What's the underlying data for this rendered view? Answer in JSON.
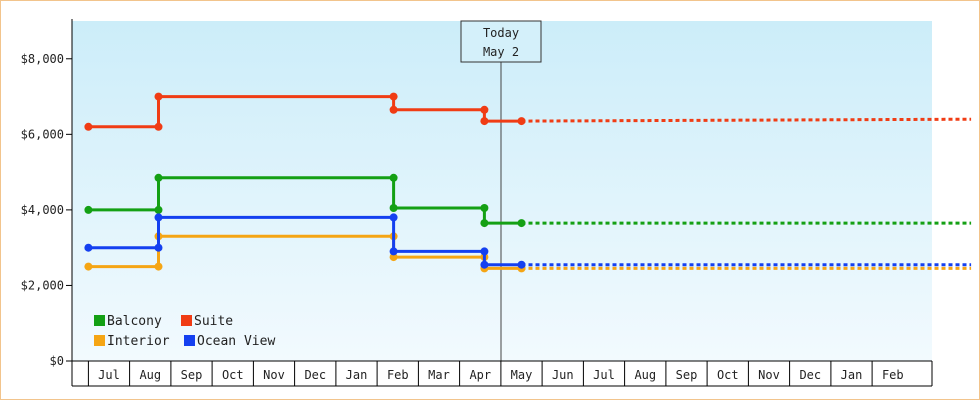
{
  "chart_data": {
    "type": "line",
    "step": true,
    "today_marker": {
      "line1": "Today",
      "line2": "May 2",
      "x": "May 2"
    },
    "y_axis": {
      "min": 0,
      "max": 9000,
      "ticks": [
        {
          "value": 0,
          "label": "$0"
        },
        {
          "value": 2000,
          "label": "$2,000"
        },
        {
          "value": 4000,
          "label": "$4,000"
        },
        {
          "value": 6000,
          "label": "$6,000"
        },
        {
          "value": 8000,
          "label": "$8,000"
        }
      ]
    },
    "x_axis": {
      "months": [
        "Jul",
        "Aug",
        "Sep",
        "Oct",
        "Nov",
        "Dec",
        "Jan",
        "Feb",
        "Mar",
        "Apr",
        "May",
        "Jun",
        "Jul",
        "Aug",
        "Sep",
        "Oct",
        "Nov",
        "Dec",
        "Jan",
        "Feb"
      ]
    },
    "legend_position": "bottom-left",
    "grid": false,
    "background": {
      "top": "#ccedf9",
      "bottom": "#f2fafe"
    },
    "series": [
      {
        "name": "Balcony",
        "color": "#14a014",
        "points": [
          [
            -0.5,
            4000
          ],
          [
            1.2,
            4000
          ],
          [
            1.2,
            4850
          ],
          [
            6.9,
            4850
          ],
          [
            6.9,
            4050
          ],
          [
            9.1,
            4050
          ],
          [
            9.1,
            3650
          ],
          [
            10.0,
            3650
          ]
        ],
        "forecast": [
          [
            10.0,
            3650
          ],
          [
            20.9,
            3650
          ]
        ]
      },
      {
        "name": "Suite",
        "color": "#f03c14",
        "points": [
          [
            -0.5,
            6200
          ],
          [
            1.2,
            6200
          ],
          [
            1.2,
            7000
          ],
          [
            6.9,
            7000
          ],
          [
            6.9,
            6650
          ],
          [
            9.1,
            6650
          ],
          [
            9.1,
            6350
          ],
          [
            10.0,
            6350
          ]
        ],
        "forecast": [
          [
            10.0,
            6350
          ],
          [
            20.9,
            6400
          ]
        ]
      },
      {
        "name": "Interior",
        "color": "#f5a514",
        "points": [
          [
            -0.5,
            2500
          ],
          [
            1.2,
            2500
          ],
          [
            1.2,
            3300
          ],
          [
            6.9,
            3300
          ],
          [
            6.9,
            2750
          ],
          [
            9.1,
            2750
          ],
          [
            9.1,
            2450
          ],
          [
            10.0,
            2450
          ]
        ],
        "forecast": [
          [
            10.0,
            2450
          ],
          [
            20.9,
            2450
          ]
        ]
      },
      {
        "name": "Ocean View",
        "color": "#1440f0",
        "points": [
          [
            -0.5,
            3000
          ],
          [
            1.2,
            3000
          ],
          [
            1.2,
            3800
          ],
          [
            6.9,
            3800
          ],
          [
            6.9,
            2900
          ],
          [
            9.1,
            2900
          ],
          [
            9.1,
            2550
          ],
          [
            10.0,
            2550
          ]
        ],
        "forecast": [
          [
            10.0,
            2550
          ],
          [
            20.9,
            2550
          ]
        ]
      }
    ]
  }
}
